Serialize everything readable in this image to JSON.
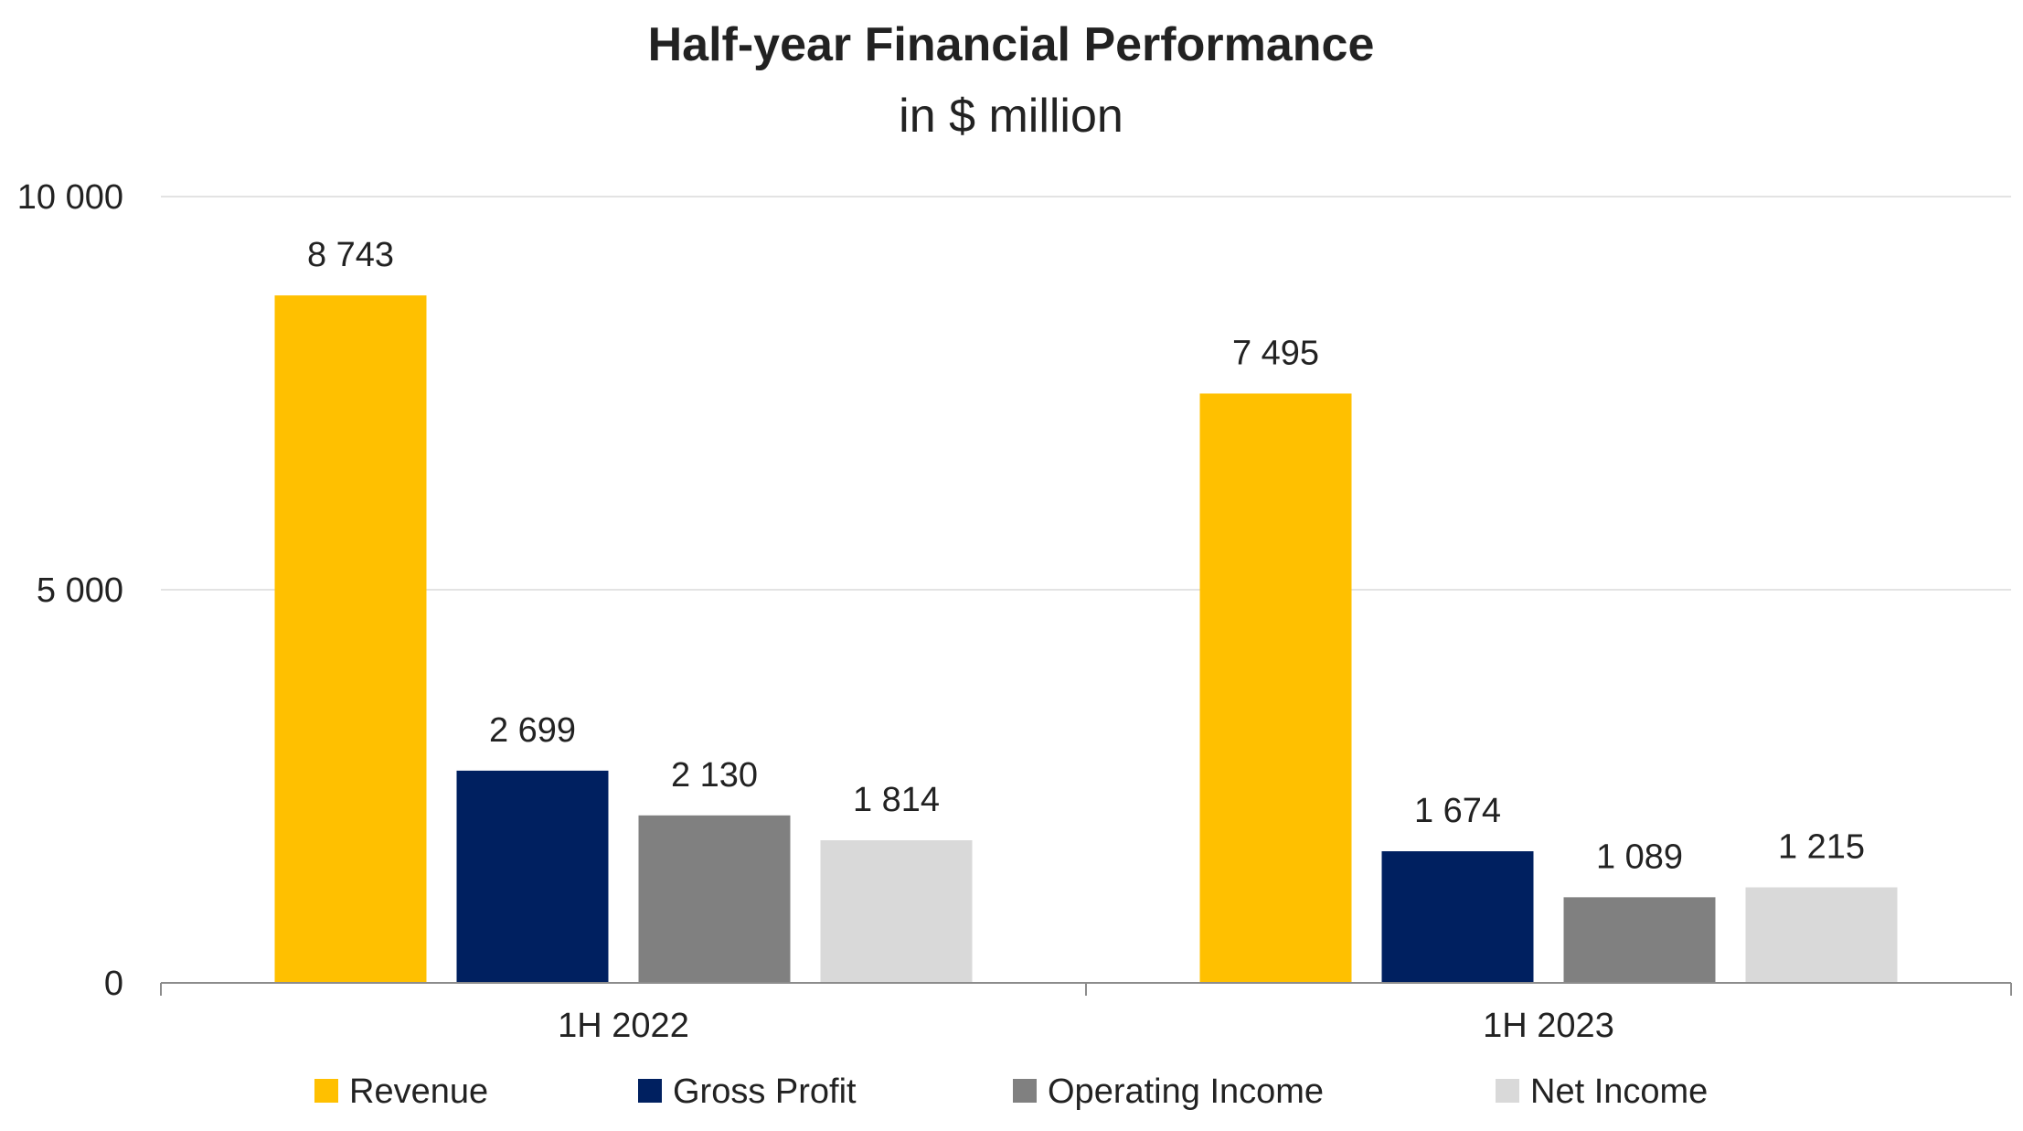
{
  "chart_data": {
    "type": "bar",
    "title": "Half-year Financial Performance",
    "subtitle": "in $ million",
    "categories": [
      "1H 2022",
      "1H 2023"
    ],
    "series": [
      {
        "name": "Revenue",
        "color": "#FFC000",
        "values": [
          8743,
          7495
        ],
        "labels": [
          "8 743",
          "7 495"
        ]
      },
      {
        "name": "Gross Profit",
        "color": "#002060",
        "values": [
          2699,
          1674
        ],
        "labels": [
          "2 699",
          "1 674"
        ]
      },
      {
        "name": "Operating Income",
        "color": "#808080",
        "values": [
          2130,
          1089
        ],
        "labels": [
          "2 130",
          "1 089"
        ]
      },
      {
        "name": "Net Income",
        "color": "#D9D9D9",
        "values": [
          1814,
          1215
        ],
        "labels": [
          "1 814",
          "1 215"
        ]
      }
    ],
    "yticks": [
      {
        "value": 0,
        "label": "0"
      },
      {
        "value": 5000,
        "label": "5 000"
      },
      {
        "value": 10000,
        "label": "10 000"
      }
    ],
    "ylim": [
      0,
      10000
    ],
    "grid": true,
    "legend_position": "bottom"
  }
}
